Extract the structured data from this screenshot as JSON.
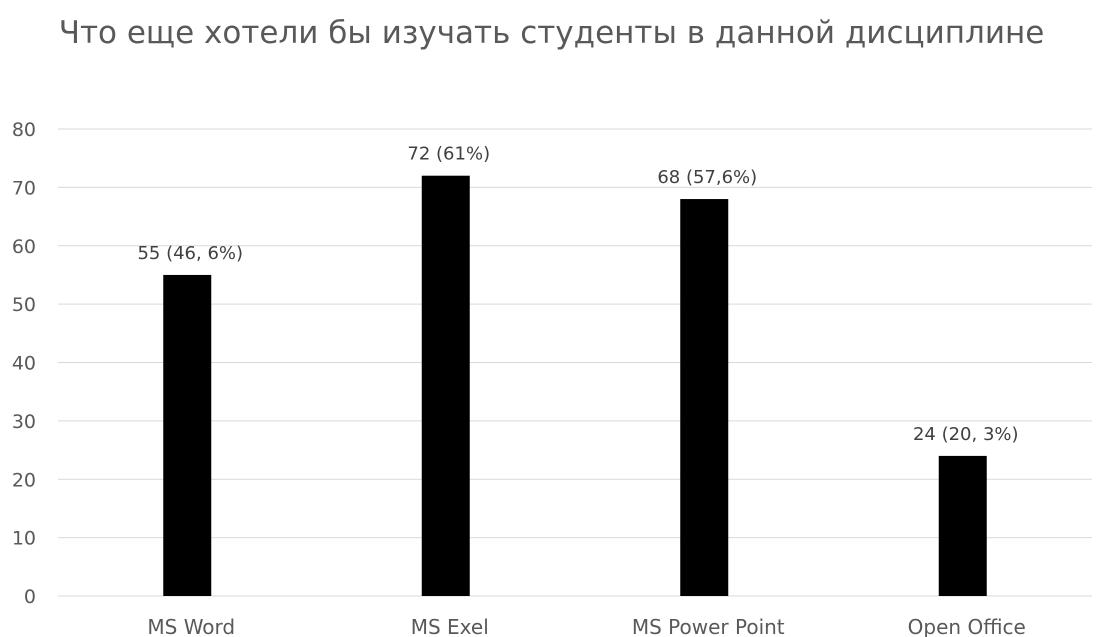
{
  "chart_data": {
    "type": "bar",
    "title": "Что еще хотели бы изучать студенты в данной дисциплине",
    "categories": [
      "MS Word",
      "MS Exel",
      "MS Power Point",
      "Open Office"
    ],
    "values": [
      55,
      72,
      68,
      24
    ],
    "data_labels": [
      "55 (46, 6%)",
      "72 (61%)",
      "68 (57,6%)",
      "24 (20, 3%)"
    ],
    "ylim": [
      0,
      80
    ],
    "yticks": [
      0,
      10,
      20,
      30,
      40,
      50,
      60,
      70,
      80
    ],
    "grid": true,
    "bar_color": "#000000",
    "grid_color": "#d9d9d9"
  }
}
